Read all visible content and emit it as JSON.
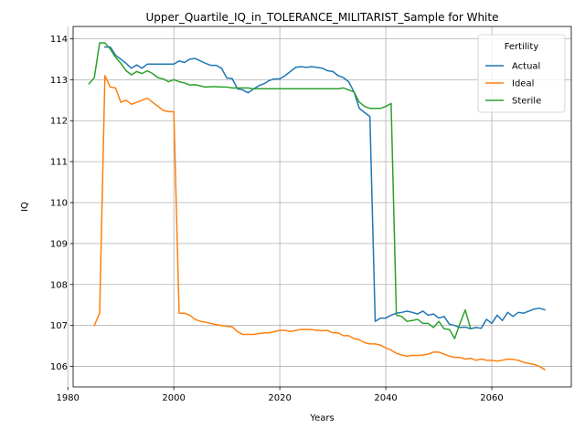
{
  "chart_data": {
    "type": "line",
    "title": "Upper_Quartile_IQ_in_TOLERANCE_MILITARIST_Sample for White",
    "xlabel": "Years",
    "ylabel": "IQ",
    "xlim": [
      1981,
      2075
    ],
    "ylim": [
      105.5,
      114.3
    ],
    "xticks": [
      1980,
      2000,
      2020,
      2040,
      2060
    ],
    "yticks": [
      106,
      107,
      108,
      109,
      110,
      111,
      112,
      113,
      114
    ],
    "grid": true,
    "legend": {
      "title": "Fertility",
      "position": "upper-right"
    },
    "series": [
      {
        "name": "Actual",
        "color": "#1f77b4",
        "x": [
          1987,
          1988,
          1989,
          1990,
          1991,
          1992,
          1993,
          1994,
          1995,
          1996,
          1997,
          1998,
          1999,
          2000,
          2001,
          2002,
          2003,
          2004,
          2005,
          2006,
          2007,
          2008,
          2009,
          2010,
          2011,
          2012,
          2013,
          2014,
          2015,
          2016,
          2017,
          2018,
          2019,
          2020,
          2021,
          2022,
          2023,
          2024,
          2025,
          2026,
          2027,
          2028,
          2029,
          2030,
          2031,
          2032,
          2033,
          2034,
          2035,
          2036,
          2037,
          2038,
          2039,
          2040,
          2041,
          2042,
          2043,
          2044,
          2045,
          2046,
          2047,
          2048,
          2049,
          2050,
          2051,
          2052,
          2053,
          2054,
          2055,
          2056,
          2057,
          2058,
          2059,
          2060,
          2061,
          2062,
          2063,
          2064,
          2065,
          2066,
          2067,
          2068,
          2069,
          2070
        ],
        "y": [
          113.8,
          113.8,
          113.6,
          113.5,
          113.4,
          113.28,
          113.36,
          113.28,
          113.38,
          113.38,
          113.38,
          113.38,
          113.38,
          113.38,
          113.46,
          113.42,
          113.5,
          113.52,
          113.46,
          113.4,
          113.35,
          113.35,
          113.28,
          113.04,
          113.03,
          112.78,
          112.75,
          112.68,
          112.77,
          112.85,
          112.9,
          112.98,
          113.02,
          113.02,
          113.1,
          113.2,
          113.3,
          113.32,
          113.3,
          113.32,
          113.3,
          113.28,
          113.22,
          113.2,
          113.1,
          113.05,
          112.95,
          112.7,
          112.3,
          112.2,
          112.1,
          107.1,
          107.18,
          107.18,
          107.25,
          107.3,
          107.32,
          107.35,
          107.32,
          107.28,
          107.35,
          107.25,
          107.28,
          107.18,
          107.22,
          107.03,
          107.0,
          106.95,
          106.96,
          106.92,
          106.95,
          106.93,
          107.15,
          107.05,
          107.25,
          107.12,
          107.32,
          107.22,
          107.32,
          107.3,
          107.35,
          107.4,
          107.42,
          107.38
        ]
      },
      {
        "name": "Ideal",
        "color": "#ff7f0e",
        "x": [
          1985,
          1986,
          1987,
          1988,
          1989,
          1990,
          1991,
          1992,
          1993,
          1994,
          1995,
          1996,
          1997,
          1998,
          1999,
          2000,
          2001,
          2002,
          2003,
          2004,
          2005,
          2006,
          2007,
          2008,
          2009,
          2010,
          2011,
          2012,
          2013,
          2014,
          2015,
          2016,
          2017,
          2018,
          2019,
          2020,
          2021,
          2022,
          2023,
          2024,
          2025,
          2026,
          2027,
          2028,
          2029,
          2030,
          2031,
          2032,
          2033,
          2034,
          2035,
          2036,
          2037,
          2038,
          2039,
          2040,
          2041,
          2042,
          2043,
          2044,
          2045,
          2046,
          2047,
          2048,
          2049,
          2050,
          2051,
          2052,
          2053,
          2054,
          2055,
          2056,
          2057,
          2058,
          2059,
          2060,
          2061,
          2062,
          2063,
          2064,
          2065,
          2066,
          2067,
          2068,
          2069,
          2070
        ],
        "y": [
          107.0,
          107.3,
          113.1,
          112.82,
          112.8,
          112.45,
          112.5,
          112.4,
          112.45,
          112.5,
          112.55,
          112.45,
          112.35,
          112.25,
          112.22,
          112.22,
          107.3,
          107.3,
          107.25,
          107.15,
          107.1,
          107.08,
          107.05,
          107.02,
          107.0,
          106.98,
          106.97,
          106.85,
          106.78,
          106.78,
          106.78,
          106.8,
          106.82,
          106.82,
          106.85,
          106.88,
          106.88,
          106.85,
          106.88,
          106.9,
          106.9,
          106.9,
          106.88,
          106.87,
          106.88,
          106.82,
          106.82,
          106.75,
          106.75,
          106.68,
          106.65,
          106.58,
          106.55,
          106.55,
          106.52,
          106.45,
          106.4,
          106.32,
          106.28,
          106.25,
          106.27,
          106.27,
          106.28,
          106.3,
          106.35,
          106.35,
          106.3,
          106.25,
          106.22,
          106.22,
          106.18,
          106.2,
          106.15,
          106.18,
          106.15,
          106.15,
          106.13,
          106.15,
          106.18,
          106.17,
          106.15,
          106.1,
          106.07,
          106.05,
          106.0,
          105.92
        ]
      },
      {
        "name": "Sterile",
        "color": "#2ca02c",
        "x": [
          1984,
          1985,
          1986,
          1987,
          1988,
          1989,
          1990,
          1991,
          1992,
          1993,
          1994,
          1995,
          1996,
          1997,
          1998,
          1999,
          2000,
          2001,
          2002,
          2003,
          2004,
          2005,
          2006,
          2007,
          2008,
          2009,
          2010,
          2011,
          2012,
          2013,
          2014,
          2015,
          2016,
          2017,
          2018,
          2019,
          2020,
          2021,
          2022,
          2023,
          2024,
          2025,
          2026,
          2027,
          2028,
          2029,
          2030,
          2031,
          2032,
          2033,
          2034,
          2035,
          2036,
          2037,
          2038,
          2039,
          2040,
          2041,
          2042,
          2043,
          2044,
          2045,
          2046,
          2047,
          2048,
          2049,
          2050,
          2051,
          2052,
          2053,
          2054,
          2055,
          2056
        ],
        "y": [
          112.9,
          113.05,
          113.9,
          113.9,
          113.75,
          113.55,
          113.4,
          113.22,
          113.12,
          113.2,
          113.15,
          113.22,
          113.15,
          113.05,
          113.02,
          112.95,
          113.0,
          112.95,
          112.92,
          112.87,
          112.88,
          112.85,
          112.82,
          112.83,
          112.83,
          112.82,
          112.82,
          112.8,
          112.8,
          112.8,
          112.8,
          112.78,
          112.78,
          112.78,
          112.78,
          112.78,
          112.78,
          112.78,
          112.78,
          112.78,
          112.78,
          112.78,
          112.78,
          112.78,
          112.78,
          112.78,
          112.78,
          112.78,
          112.8,
          112.75,
          112.7,
          112.45,
          112.35,
          112.3,
          112.3,
          112.3,
          112.35,
          112.42,
          107.25,
          107.22,
          107.1,
          107.12,
          107.15,
          107.05,
          107.05,
          106.95,
          107.1,
          106.92,
          106.9,
          106.68,
          107.05,
          107.38,
          106.92
        ]
      }
    ]
  }
}
